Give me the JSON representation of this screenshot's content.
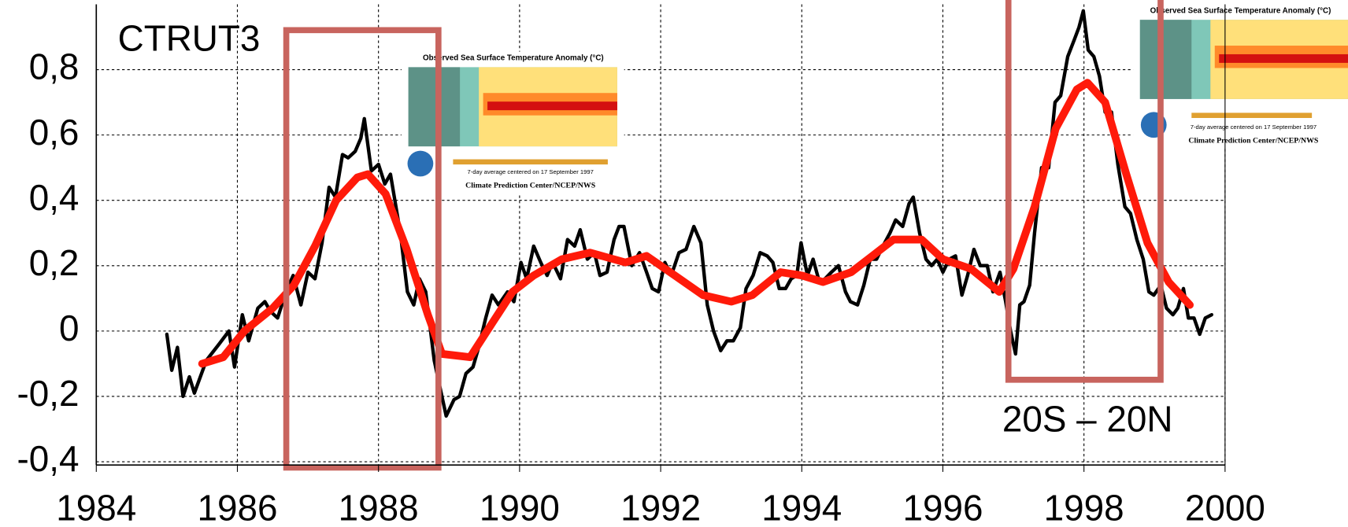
{
  "chart_data": {
    "type": "line",
    "annotations": [
      "CTRUT3",
      "20S – 20N"
    ],
    "inset_title": "Observed Sea Surface Temperature Anomaly (°C)",
    "inset_caption": "7-day average centered on 17 September 1997",
    "inset_credit": "Climate Prediction Center/NCEP/NWS",
    "xlim": [
      1984,
      2000
    ],
    "ylim": [
      -0.41,
      1.0
    ],
    "xticks": [
      1984,
      1986,
      1988,
      1990,
      1992,
      1994,
      1996,
      1998,
      2000
    ],
    "yticks": [
      {
        "value": -0.4,
        "label": "-0,4"
      },
      {
        "value": -0.2,
        "label": "-0,2"
      },
      0,
      {
        "value": 0.2,
        "label": "0,2"
      },
      {
        "value": 0.4,
        "label": "0,4"
      },
      {
        "value": 0.6,
        "label": "0,6"
      },
      {
        "value": 0.8,
        "label": "0,8"
      }
    ],
    "grid": true,
    "series": [
      {
        "color": "#000000",
        "x": [
          1985.0,
          1985.07,
          1985.15,
          1985.23,
          1985.32,
          1985.39,
          1985.56,
          1985.74,
          1985.88,
          1985.96,
          1986.07,
          1986.16,
          1986.29,
          1986.39,
          1986.47,
          1986.57,
          1986.69,
          1986.79,
          1986.9,
          1987.0,
          1987.1,
          1987.2,
          1987.3,
          1987.39,
          1987.49,
          1987.57,
          1987.67,
          1987.75,
          1987.8,
          1987.9,
          1988.0,
          1988.09,
          1988.17,
          1988.31,
          1988.41,
          1988.5,
          1988.58,
          1988.67,
          1988.79,
          1988.87,
          1988.96,
          1989.07,
          1989.15,
          1989.24,
          1989.34,
          1989.42,
          1989.52,
          1989.61,
          1989.7,
          1989.83,
          1989.92,
          1990.02,
          1990.1,
          1990.2,
          1990.3,
          1990.39,
          1990.47,
          1990.58,
          1990.68,
          1990.78,
          1990.86,
          1990.96,
          1991.06,
          1991.14,
          1991.24,
          1991.34,
          1991.41,
          1991.48,
          1991.59,
          1991.7,
          1991.8,
          1991.88,
          1991.97,
          1992.06,
          1992.15,
          1992.26,
          1992.36,
          1992.47,
          1992.57,
          1992.66,
          1992.75,
          1992.85,
          1992.94,
          1993.03,
          1993.13,
          1993.21,
          1993.31,
          1993.41,
          1993.51,
          1993.59,
          1993.68,
          1993.77,
          1993.85,
          1993.93,
          1993.99,
          1994.08,
          1994.16,
          1994.25,
          1994.33,
          1994.42,
          1994.52,
          1994.62,
          1994.69,
          1994.79,
          1994.88,
          1994.97,
          1995.06,
          1995.15,
          1995.25,
          1995.33,
          1995.43,
          1995.52,
          1995.58,
          1995.67,
          1995.76,
          1995.84,
          1995.92,
          1996.0,
          1996.09,
          1996.18,
          1996.27,
          1996.35,
          1996.44,
          1996.53,
          1996.63,
          1996.71,
          1996.81,
          1996.89,
          1996.96,
          1997.03,
          1997.09,
          1997.15,
          1997.23,
          1997.3,
          1997.4,
          1997.5,
          1997.59,
          1997.67,
          1997.77,
          1997.86,
          1997.93,
          1997.99,
          1998.06,
          1998.14,
          1998.22,
          1998.3,
          1998.39,
          1998.48,
          1998.58,
          1998.66,
          1998.75,
          1998.84,
          1998.92,
          1998.99,
          1999.09,
          1999.17,
          1999.26,
          1999.33,
          1999.41,
          1999.48,
          1999.56,
          1999.64,
          1999.72,
          1999.81
        ],
        "values": [
          -0.01,
          -0.12,
          -0.05,
          -0.2,
          -0.14,
          -0.19,
          -0.09,
          -0.04,
          0.0,
          -0.11,
          0.05,
          -0.03,
          0.07,
          0.09,
          0.06,
          0.04,
          0.12,
          0.17,
          0.08,
          0.18,
          0.16,
          0.27,
          0.44,
          0.41,
          0.54,
          0.53,
          0.55,
          0.59,
          0.65,
          0.49,
          0.51,
          0.45,
          0.48,
          0.3,
          0.12,
          0.08,
          0.16,
          0.12,
          -0.09,
          -0.17,
          -0.26,
          -0.21,
          -0.2,
          -0.13,
          -0.11,
          -0.05,
          0.04,
          0.11,
          0.08,
          0.12,
          0.09,
          0.21,
          0.16,
          0.26,
          0.21,
          0.17,
          0.21,
          0.16,
          0.28,
          0.26,
          0.31,
          0.22,
          0.24,
          0.17,
          0.18,
          0.28,
          0.32,
          0.32,
          0.2,
          0.24,
          0.18,
          0.13,
          0.12,
          0.21,
          0.17,
          0.24,
          0.25,
          0.32,
          0.27,
          0.08,
          0.0,
          -0.06,
          -0.03,
          -0.03,
          0.01,
          0.13,
          0.17,
          0.24,
          0.23,
          0.21,
          0.13,
          0.13,
          0.16,
          0.17,
          0.27,
          0.17,
          0.22,
          0.15,
          0.16,
          0.18,
          0.2,
          0.12,
          0.09,
          0.08,
          0.14,
          0.22,
          0.22,
          0.26,
          0.3,
          0.34,
          0.32,
          0.39,
          0.41,
          0.3,
          0.22,
          0.2,
          0.22,
          0.18,
          0.22,
          0.23,
          0.11,
          0.17,
          0.25,
          0.2,
          0.2,
          0.12,
          0.18,
          0.09,
          0.0,
          -0.07,
          0.08,
          0.09,
          0.14,
          0.3,
          0.5,
          0.5,
          0.7,
          0.72,
          0.84,
          0.89,
          0.93,
          0.98,
          0.86,
          0.84,
          0.78,
          0.67,
          0.67,
          0.51,
          0.38,
          0.36,
          0.28,
          0.22,
          0.12,
          0.11,
          0.14,
          0.07,
          0.05,
          0.07,
          0.13,
          0.04,
          0.04,
          -0.01,
          0.04,
          0.05
        ]
      },
      {
        "color": "#ff1a0a",
        "x": [
          1985.5,
          1985.8,
          1986.1,
          1986.5,
          1986.8,
          1987.1,
          1987.4,
          1987.7,
          1987.85,
          1988.1,
          1988.4,
          1988.7,
          1988.9,
          1989.3,
          1989.6,
          1989.9,
          1990.2,
          1990.6,
          1991.0,
          1991.5,
          1991.8,
          1992.2,
          1992.6,
          1993.0,
          1993.3,
          1993.7,
          1994.0,
          1994.3,
          1994.7,
          1995.0,
          1995.3,
          1995.7,
          1996.0,
          1996.4,
          1996.8,
          1997.0,
          1997.3,
          1997.6,
          1997.9,
          1998.05,
          1998.3,
          1998.6,
          1998.9,
          1999.2,
          1999.5
        ],
        "values": [
          -0.1,
          -0.08,
          0.0,
          0.07,
          0.14,
          0.26,
          0.4,
          0.47,
          0.48,
          0.42,
          0.25,
          0.05,
          -0.07,
          -0.08,
          0.02,
          0.12,
          0.17,
          0.22,
          0.24,
          0.21,
          0.23,
          0.17,
          0.11,
          0.09,
          0.11,
          0.18,
          0.17,
          0.15,
          0.18,
          0.23,
          0.28,
          0.28,
          0.22,
          0.19,
          0.12,
          0.19,
          0.38,
          0.62,
          0.74,
          0.76,
          0.7,
          0.48,
          0.27,
          0.15,
          0.08
        ]
      }
    ]
  }
}
